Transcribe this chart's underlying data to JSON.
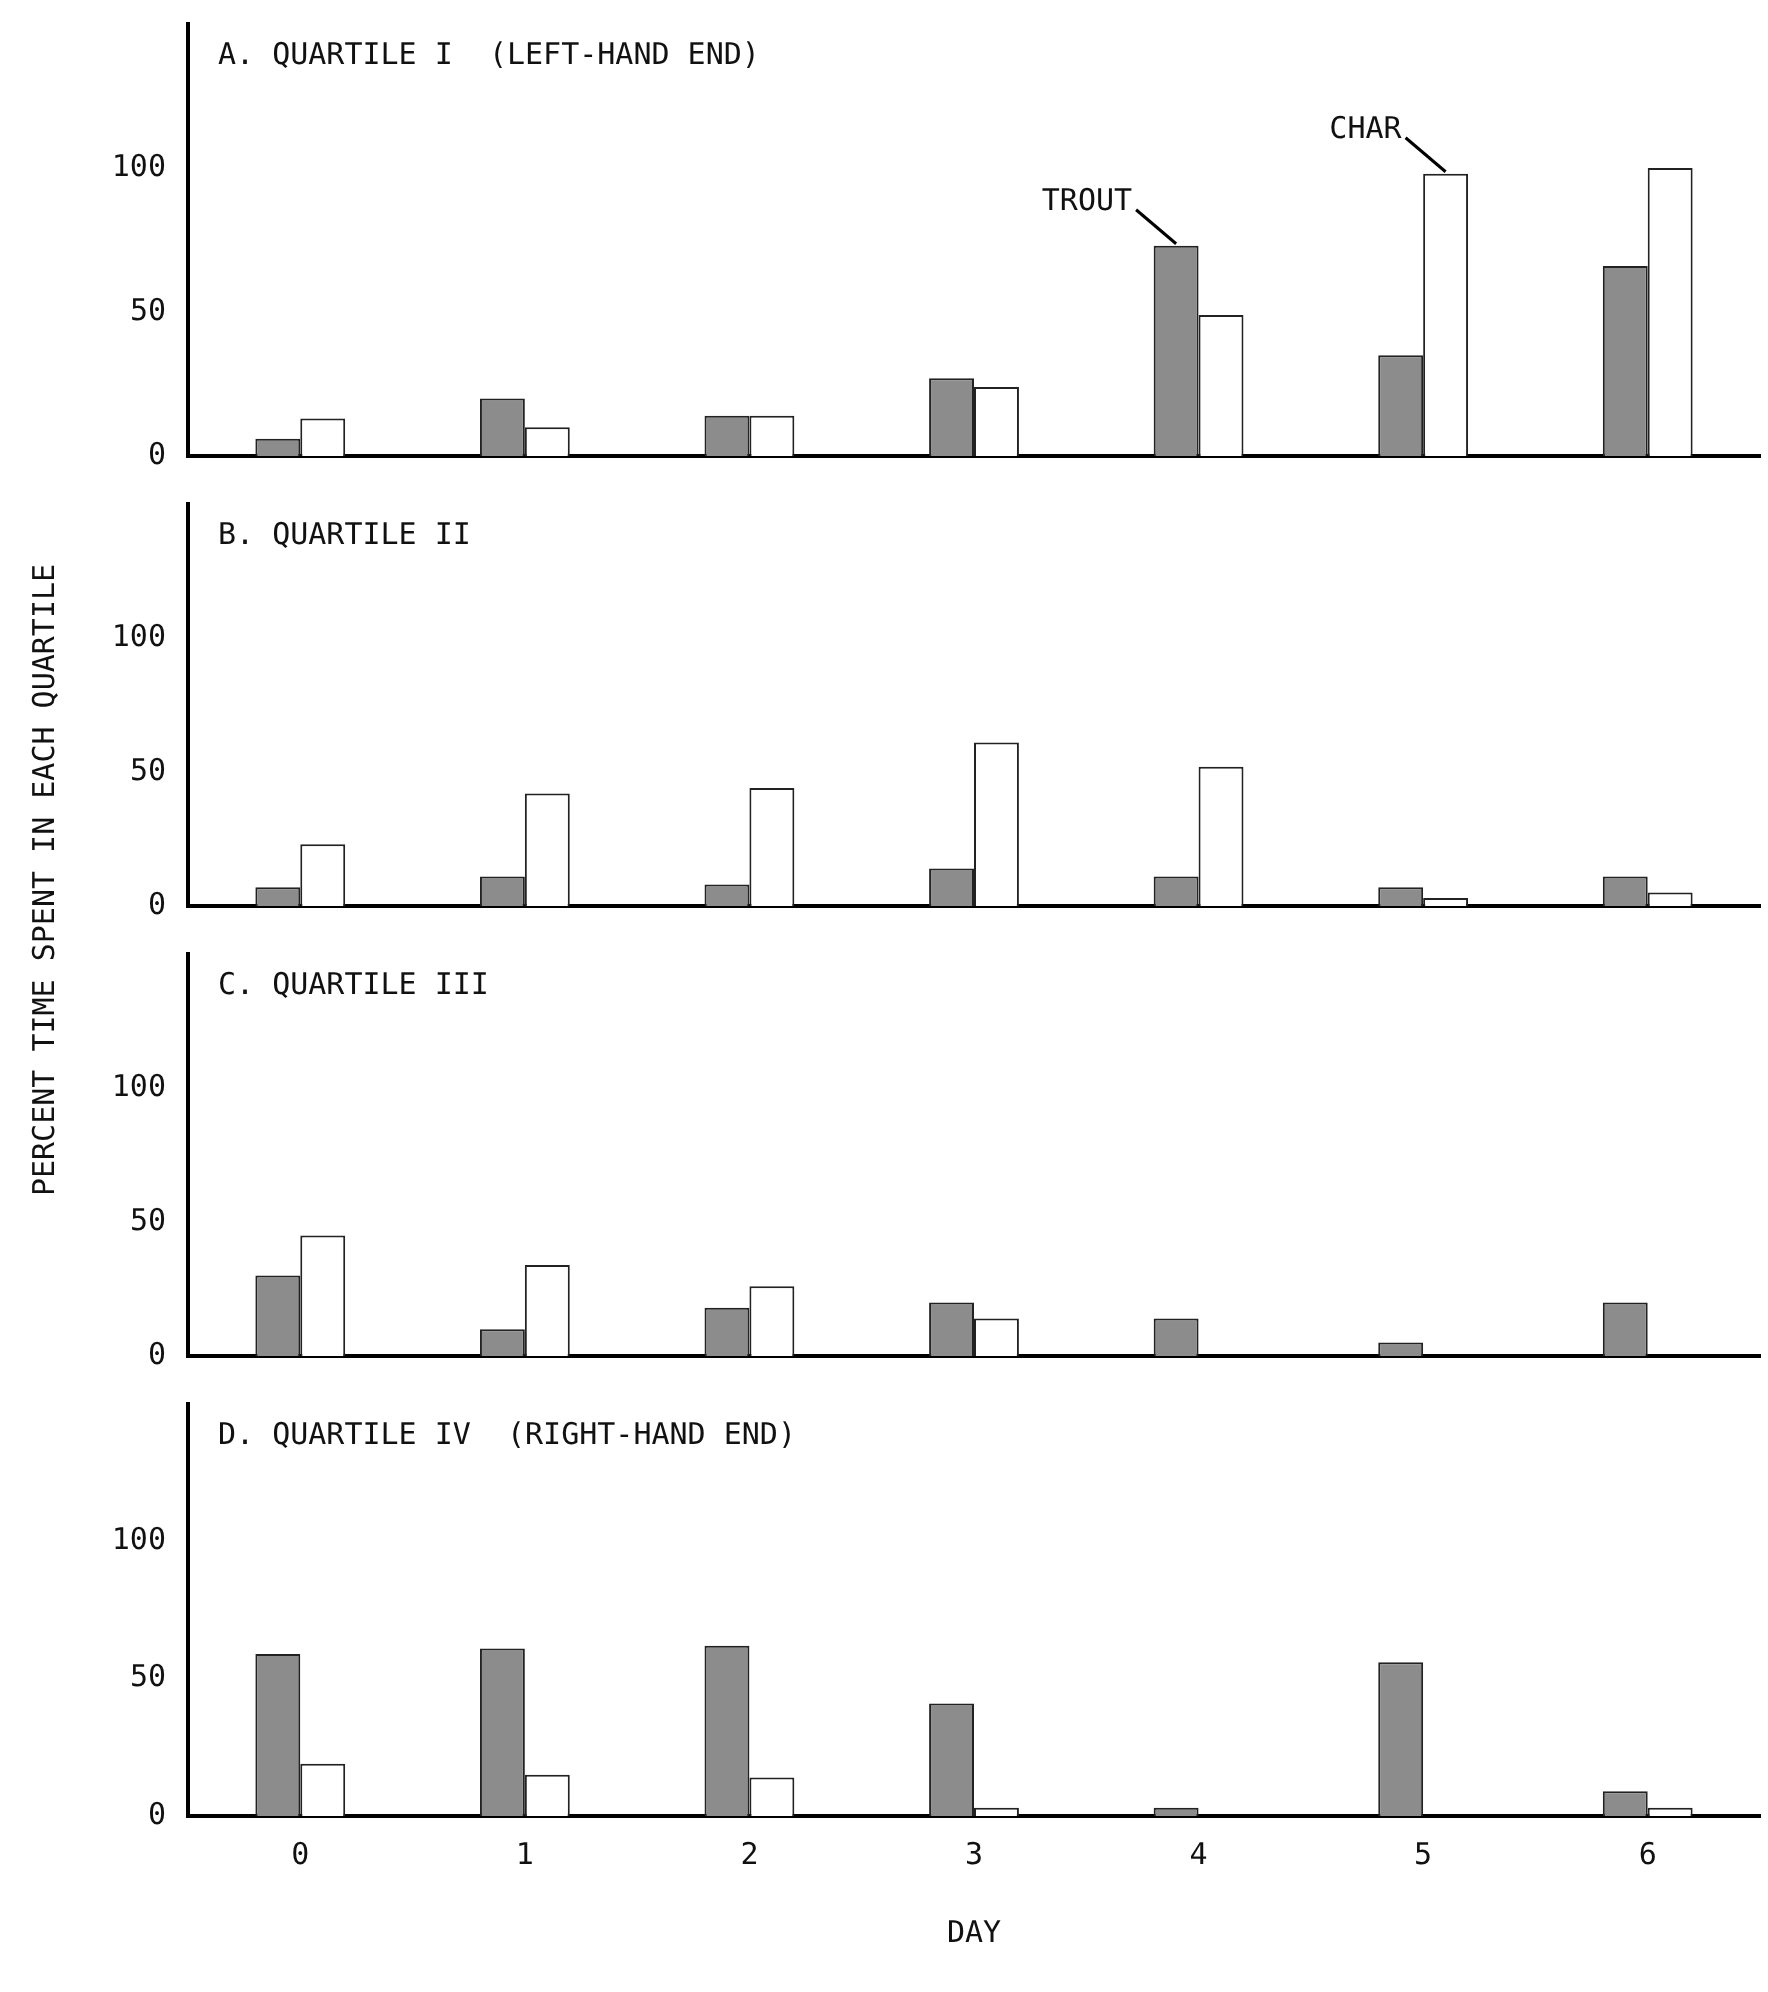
{
  "chart_data": [
    {
      "type": "bar",
      "title": "A. QUARTILE I  (LEFT-HAND END)",
      "ylabel": "PERCENT TIME SPENT IN EACH QUARTILE",
      "categories": [
        "0",
        "1",
        "2",
        "3",
        "4",
        "5",
        "6"
      ],
      "series": [
        {
          "color": "#8c8c8c",
          "values": [
            6,
            20,
            14,
            27,
            73,
            35,
            66
          ]
        },
        {
          "color": "#ffffff",
          "values": [
            13,
            10,
            14,
            24,
            49,
            98,
            100
          ]
        }
      ],
      "annotations": [
        {
          "text": "TROUT",
          "x": "4",
          "y": 73
        },
        {
          "text": "CHAR",
          "x": "5",
          "y": 98
        }
      ],
      "ylim": [
        0,
        150
      ],
      "yticks": [
        0,
        50,
        100
      ],
      "tick_labels": "y"
    },
    {
      "type": "bar",
      "title": "B. QUARTILE II",
      "categories": [
        "0",
        "1",
        "2",
        "3",
        "4",
        "5",
        "6"
      ],
      "series": [
        {
          "color": "#8c8c8c",
          "values": [
            7,
            11,
            8,
            14,
            11,
            7,
            11
          ]
        },
        {
          "color": "#ffffff",
          "values": [
            23,
            42,
            44,
            61,
            52,
            3,
            5
          ]
        }
      ],
      "ylim": [
        0,
        150
      ],
      "yticks": [
        0,
        50,
        100
      ],
      "tick_labels": "y"
    },
    {
      "type": "bar",
      "title": "C. QUARTILE III",
      "categories": [
        "0",
        "1",
        "2",
        "3",
        "4",
        "5",
        "6"
      ],
      "series": [
        {
          "color": "#8c8c8c",
          "values": [
            30,
            10,
            18,
            20,
            14,
            5,
            20
          ]
        },
        {
          "color": "#ffffff",
          "values": [
            45,
            34,
            26,
            14,
            0,
            0,
            0
          ]
        }
      ],
      "ylim": [
        0,
        150
      ],
      "yticks": [
        0,
        50,
        100
      ],
      "tick_labels": "y"
    },
    {
      "type": "bar",
      "title": "D. QUARTILE IV  (RIGHT-HAND END)",
      "xlabel": "DAY",
      "categories": [
        "0",
        "1",
        "2",
        "3",
        "4",
        "5",
        "6"
      ],
      "series": [
        {
          "color": "#8c8c8c",
          "values": [
            59,
            61,
            62,
            41,
            3,
            56,
            9
          ]
        },
        {
          "color": "#ffffff",
          "values": [
            19,
            15,
            14,
            3,
            0,
            0,
            3
          ]
        }
      ],
      "ylim": [
        0,
        150
      ],
      "yticks": [
        0,
        50,
        100
      ]
    }
  ]
}
